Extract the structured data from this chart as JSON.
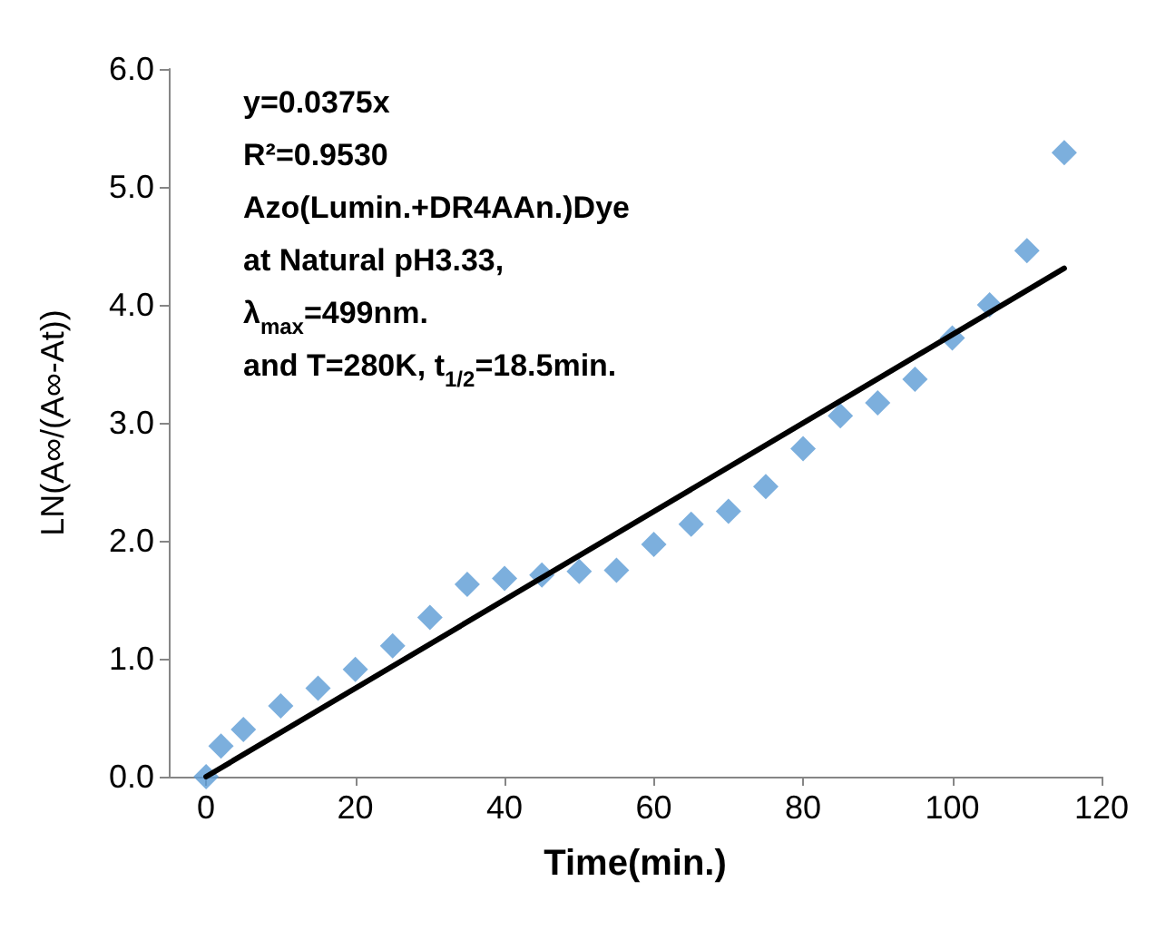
{
  "chart_data": {
    "type": "scatter",
    "xlabel": "Time(min.)",
    "ylabel": "LN(A∞/(A∞-At))",
    "annotations": [
      "y=0.0375x",
      "R²=0.9530",
      "Azo(Lumin.+DR4AAn.)Dye",
      "at Natural pH3.33,",
      "λ$_{max}$=499nm.",
      "and T=280K, t$_{1/2}$=18.5min."
    ],
    "series": [
      {
        "color": "#5b9bd5",
        "marker": "diamond",
        "x": [
          0,
          2,
          5,
          10,
          15,
          20,
          25,
          30,
          35,
          40,
          45,
          50,
          55,
          60,
          65,
          70,
          75,
          80,
          85,
          90,
          95,
          100,
          105,
          110,
          115
        ],
        "values": [
          0,
          0.26,
          0.4,
          0.6,
          0.75,
          0.91,
          1.11,
          1.35,
          1.63,
          1.68,
          1.71,
          1.74,
          1.75,
          1.97,
          2.14,
          2.25,
          2.46,
          2.78,
          3.06,
          3.17,
          3.37,
          3.72,
          4.0,
          4.46,
          5.29
        ]
      },
      {
        "type": "line",
        "color": "#000000",
        "marker": "none",
        "line_style": "solid",
        "x": [
          0,
          115
        ],
        "values": [
          0,
          4.31
        ]
      }
    ],
    "xlim": [
      -5,
      120
    ],
    "xticks": [
      0,
      20,
      40,
      60,
      80,
      100,
      120
    ],
    "ylim": [
      0,
      6
    ],
    "yticks": [
      {
        "value": 0,
        "label": "0.0"
      },
      {
        "value": 1,
        "label": "1.0"
      },
      {
        "value": 2,
        "label": "2.0"
      },
      {
        "value": 3,
        "label": "3.0"
      },
      {
        "value": 4,
        "label": "4.0"
      },
      {
        "value": 5,
        "label": "5.0"
      },
      {
        "value": 6,
        "label": "6.0"
      }
    ],
    "grid": false
  }
}
